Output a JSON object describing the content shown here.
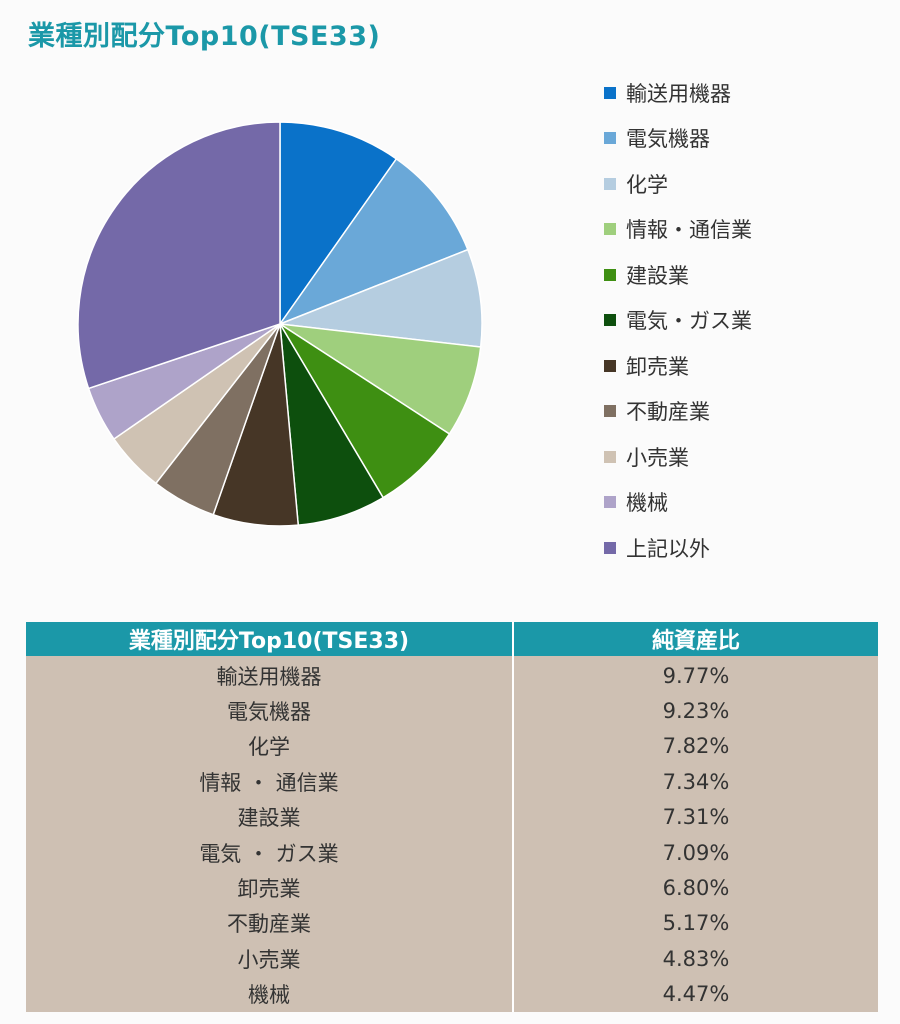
{
  "title": "業種別配分Top10(TSE33)",
  "chart_data": {
    "type": "pie",
    "title": "業種別配分Top10(TSE33)",
    "legend_placement": "right",
    "slices": [
      {
        "label": "輸送用機器",
        "value": 9.77,
        "color": "#0a72c9"
      },
      {
        "label": "電気機器",
        "value": 9.23,
        "color": "#6aa8d8"
      },
      {
        "label": "化学",
        "value": 7.82,
        "color": "#b5cde0"
      },
      {
        "label": "情報・通信業",
        "value": 7.34,
        "color": "#9fcf7d"
      },
      {
        "label": "建設業",
        "value": 7.31,
        "color": "#3e8f12"
      },
      {
        "label": "電気・ガス業",
        "value": 7.09,
        "color": "#0d4f0d"
      },
      {
        "label": "卸売業",
        "value": 6.8,
        "color": "#463626"
      },
      {
        "label": "不動産業",
        "value": 5.17,
        "color": "#7f7062"
      },
      {
        "label": "小売業",
        "value": 4.83,
        "color": "#cfc2b3"
      },
      {
        "label": "機械",
        "value": 4.47,
        "color": "#aea3c9"
      },
      {
        "label": "上記以外",
        "value": 30.17,
        "color": "#7469a8"
      }
    ]
  },
  "table": {
    "headers": {
      "industry": "業種別配分Top10(TSE33)",
      "ratio": "純資産比"
    },
    "rows": [
      {
        "industry": "輸送用機器",
        "ratio": "9.77%"
      },
      {
        "industry": "電気機器",
        "ratio": "9.23%"
      },
      {
        "industry": "化学",
        "ratio": "7.82%"
      },
      {
        "industry": "情報 ・ 通信業",
        "ratio": "7.34%"
      },
      {
        "industry": "建設業",
        "ratio": "7.31%"
      },
      {
        "industry": "電気 ・ ガス業",
        "ratio": "7.09%"
      },
      {
        "industry": "卸売業",
        "ratio": "6.80%"
      },
      {
        "industry": "不動産業",
        "ratio": "5.17%"
      },
      {
        "industry": "小売業",
        "ratio": "4.83%"
      },
      {
        "industry": "機械",
        "ratio": "4.47%"
      }
    ]
  }
}
